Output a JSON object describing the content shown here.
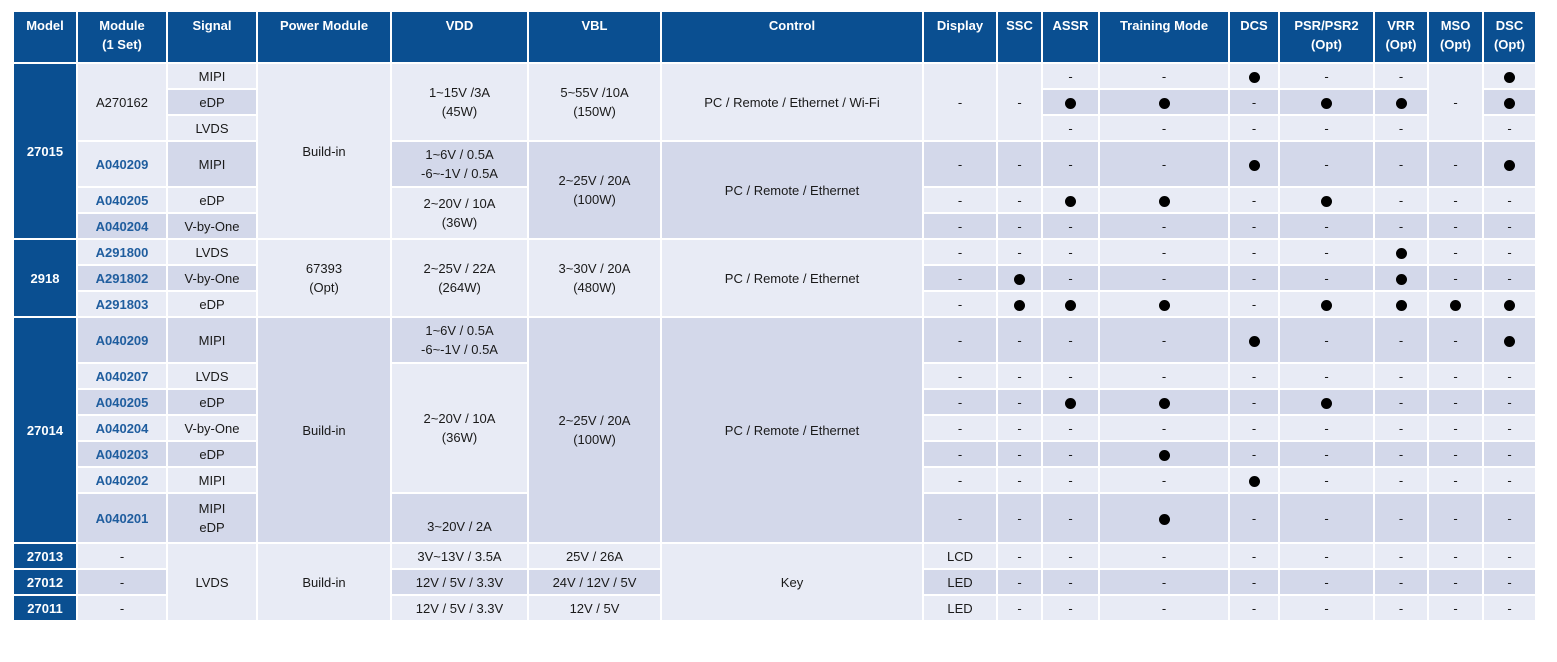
{
  "headers": [
    "Model",
    "Module\n(1 Set)",
    "Signal",
    "Power Module",
    "VDD",
    "VBL",
    "Control",
    "Display",
    "SSC",
    "ASSR",
    "Training Mode",
    "DCS",
    "PSR/PSR2\n(Opt)",
    "VRR\n(Opt)",
    "MSO\n(Opt)",
    "DSC\n(Opt)"
  ],
  "bullet": "●",
  "dash": "-",
  "models": {
    "m27015": "27015",
    "m2918": "2918",
    "m27014": "27014",
    "m27013": "27013",
    "m27012": "27012",
    "m27011": "27011"
  },
  "modules": {
    "a270162": "A270162",
    "a040209": "A040209",
    "a040205": "A040205",
    "a040204": "A040204",
    "a291800": "A291800",
    "a291802": "A291802",
    "a291803": "A291803",
    "a040207": "A040207",
    "a040203": "A040203",
    "a040202": "A040202",
    "a040201": "A040201"
  },
  "signals": {
    "mipi": "MIPI",
    "edp": "eDP",
    "lvds": "LVDS",
    "vbyone": "V-by-One",
    "mipi_edp": "MIPI\neDP"
  },
  "power": {
    "buildin": "Build-in",
    "p67393": "67393\n(Opt)"
  },
  "vdd": {
    "v1_15": "1~15V /3A\n(45W)",
    "v1_6": "1~6V / 0.5A\n-6~-1V / 0.5A",
    "v2_20": "2~20V / 10A\n(36W)",
    "v2_25": "2~25V / 22A\n(264W)",
    "v3_20": "3~20V / 2A",
    "v3_13": "3V~13V / 3.5A",
    "v12_5_33": "12V / 5V / 3.3V"
  },
  "vbl": {
    "b5_55": "5~55V /10A\n(150W)",
    "b2_25": "2~25V / 20A\n(100W)",
    "b3_30": "3~30V / 20A\n(480W)",
    "b25_26": "25V / 26A",
    "b24_12_5": "24V / 12V / 5V",
    "b12_5": "12V / 5V"
  },
  "control": {
    "full": "PC / Remote / Ethernet / Wi-Fi",
    "eth": "PC / Remote / Ethernet",
    "key": "Key"
  },
  "display": {
    "lcd": "LCD",
    "led": "LED"
  }
}
